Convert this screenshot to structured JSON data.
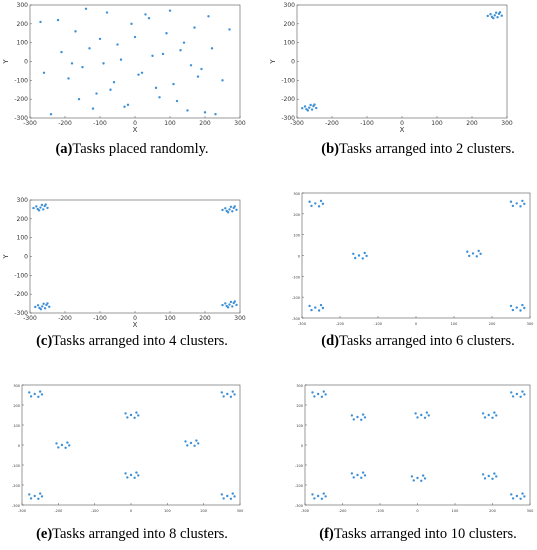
{
  "chart_data": [
    {
      "type": "scatter",
      "caption_label": "(a)",
      "caption": "Tasks placed randomly.",
      "xlabel": "X",
      "ylabel": "Y",
      "color": "#3d8fd6",
      "xlim": [
        -300,
        300
      ],
      "ylim": [
        -300,
        300
      ],
      "xticks": [
        -300,
        -200,
        -100,
        0,
        100,
        200,
        300
      ],
      "yticks": [
        -300,
        -200,
        -100,
        0,
        100,
        200,
        300
      ],
      "x": [
        -270,
        -240,
        -210,
        -190,
        -170,
        -150,
        -140,
        -120,
        -100,
        -90,
        -70,
        -50,
        -30,
        -10,
        10,
        30,
        50,
        70,
        90,
        110,
        130,
        150,
        170,
        190,
        210,
        230,
        250,
        270,
        -260,
        -220,
        -180,
        -160,
        -130,
        -110,
        -80,
        -60,
        -40,
        -20,
        0,
        20,
        40,
        60,
        80,
        100,
        120,
        140,
        160,
        180,
        200,
        220
      ],
      "values": [
        210,
        -280,
        50,
        -90,
        160,
        -30,
        280,
        -250,
        120,
        -10,
        -150,
        90,
        -240,
        200,
        -70,
        250,
        30,
        -190,
        150,
        -120,
        60,
        -260,
        180,
        -40,
        240,
        -280,
        -100,
        170,
        -60,
        220,
        -10,
        -200,
        70,
        -170,
        260,
        -110,
        10,
        -230,
        130,
        -60,
        230,
        -140,
        40,
        270,
        -210,
        100,
        -20,
        -80,
        -270,
        70
      ]
    },
    {
      "type": "scatter",
      "caption_label": "(b)",
      "caption": "Tasks arranged into 2 clusters.",
      "xlabel": "X",
      "ylabel": "Y",
      "color": "#3d8fd6",
      "xlim": [
        -300,
        300
      ],
      "ylim": [
        -300,
        300
      ],
      "xticks": [
        -300,
        -200,
        -100,
        0,
        100,
        200,
        300
      ],
      "yticks": [
        -300,
        -200,
        -100,
        0,
        100,
        200,
        300
      ],
      "x": [
        -265,
        -253,
        -277,
        -257,
        -273,
        -245,
        -285,
        -261,
        -269,
        -250,
        265,
        277,
        253,
        273,
        257,
        285,
        245,
        269,
        261,
        280
      ],
      "values": [
        -245,
        -237,
        -239,
        -255,
        -253,
        -247,
        -248,
        -231,
        -260,
        -229,
        245,
        253,
        251,
        235,
        237,
        243,
        242,
        259,
        230,
        261
      ]
    },
    {
      "type": "scatter",
      "caption_label": "(c)",
      "caption": "Tasks arranged into 4 clusters.",
      "xlabel": "X",
      "ylabel": "Y",
      "color": "#3d8fd6",
      "xlim": [
        -300,
        300
      ],
      "ylim": [
        -300,
        300
      ],
      "xticks": [
        -300,
        -200,
        -100,
        0,
        100,
        200,
        300
      ],
      "yticks": [
        -300,
        -200,
        -100,
        0,
        100,
        200,
        300
      ],
      "x": [
        -270,
        -258,
        -282,
        -262,
        -278,
        -250,
        -290,
        -266,
        -274,
        -255,
        270,
        282,
        258,
        278,
        262,
        290,
        250,
        274,
        266,
        285,
        -265,
        -253,
        -277,
        -257,
        -273,
        -245,
        -285,
        -261,
        -269,
        -250,
        270,
        282,
        258,
        278,
        262,
        290,
        250,
        274,
        266,
        285
      ],
      "values": [
        260,
        268,
        266,
        250,
        252,
        258,
        257,
        274,
        245,
        276,
        250,
        258,
        256,
        240,
        242,
        248,
        247,
        264,
        235,
        266,
        -265,
        -257,
        -259,
        -275,
        -273,
        -267,
        -268,
        -251,
        -280,
        -249,
        -255,
        -247,
        -249,
        -265,
        -263,
        -257,
        -258,
        -241,
        -270,
        -239
      ]
    },
    {
      "type": "scatter",
      "caption_label": "(d)",
      "caption": "Tasks arranged into 6 clusters.",
      "color": "#3d8fd6",
      "xlim": [
        -300,
        300
      ],
      "ylim": [
        -300,
        300
      ],
      "xticks": [
        -300,
        -200,
        -100,
        0,
        100,
        200,
        300
      ],
      "yticks": [
        -300,
        -200,
        -100,
        0,
        100,
        200,
        300
      ],
      "x": [
        -265,
        -250,
        -280,
        -255,
        -275,
        -245,
        265,
        280,
        250,
        275,
        255,
        285,
        -150,
        -135,
        -165,
        -140,
        -160,
        -130,
        150,
        165,
        135,
        160,
        140,
        170,
        -265,
        -250,
        -280,
        -255,
        -275,
        -245,
        265,
        280,
        250,
        275,
        255,
        285
      ],
      "values": [
        250,
        262,
        258,
        236,
        238,
        248,
        250,
        262,
        258,
        236,
        238,
        248,
        0,
        12,
        8,
        -14,
        -12,
        -2,
        10,
        22,
        18,
        -4,
        -2,
        8,
        -250,
        -238,
        -242,
        -264,
        -262,
        -252,
        -250,
        -238,
        -242,
        -264,
        -262,
        -252
      ]
    },
    {
      "type": "scatter",
      "caption_label": "(e)",
      "caption": "Tasks arranged into 8 clusters.",
      "color": "#3d8fd6",
      "xlim": [
        -300,
        300
      ],
      "ylim": [
        -300,
        300
      ],
      "xticks": [
        -300,
        -200,
        -100,
        0,
        100,
        200,
        300
      ],
      "yticks": [
        -300,
        -200,
        -100,
        0,
        100,
        200,
        300
      ],
      "x": [
        -265,
        -250,
        -280,
        -255,
        -275,
        -245,
        265,
        280,
        250,
        275,
        255,
        285,
        0,
        15,
        -15,
        10,
        -10,
        20,
        -190,
        -175,
        -205,
        -180,
        -200,
        -170,
        165,
        180,
        150,
        175,
        155,
        185,
        0,
        15,
        -15,
        10,
        -10,
        20,
        -265,
        -250,
        -280,
        -255,
        -275,
        -245,
        265,
        280,
        250,
        275,
        255,
        285
      ],
      "values": [
        255,
        267,
        263,
        241,
        243,
        253,
        255,
        267,
        263,
        241,
        243,
        253,
        150,
        162,
        158,
        136,
        138,
        148,
        0,
        12,
        8,
        -14,
        -12,
        -2,
        10,
        22,
        18,
        -4,
        -2,
        8,
        -150,
        -138,
        -142,
        -164,
        -162,
        -152,
        -255,
        -243,
        -247,
        -269,
        -267,
        -257,
        -255,
        -243,
        -247,
        -269,
        -267,
        -257
      ]
    },
    {
      "type": "scatter",
      "caption_label": "(f)",
      "caption": "Tasks arranged into 10 clusters.",
      "color": "#3d8fd6",
      "xlim": [
        -300,
        300
      ],
      "ylim": [
        -300,
        300
      ],
      "xticks": [
        -300,
        -200,
        -100,
        0,
        100,
        200,
        300
      ],
      "yticks": [
        -300,
        -200,
        -100,
        0,
        100,
        200,
        300
      ],
      "x": [
        -265,
        -250,
        -280,
        -255,
        -275,
        -245,
        265,
        280,
        250,
        275,
        255,
        285,
        -160,
        -145,
        -175,
        -150,
        -170,
        -140,
        10,
        25,
        -5,
        20,
        0,
        30,
        190,
        205,
        175,
        200,
        180,
        210,
        -160,
        -145,
        -175,
        -150,
        -170,
        -140,
        0,
        15,
        -15,
        10,
        -10,
        20,
        190,
        205,
        175,
        200,
        180,
        210,
        -265,
        -250,
        -280,
        -255,
        -275,
        -245,
        265,
        280,
        250,
        275,
        255,
        285
      ],
      "values": [
        255,
        267,
        263,
        241,
        243,
        253,
        255,
        267,
        263,
        241,
        243,
        253,
        140,
        152,
        148,
        126,
        128,
        138,
        150,
        162,
        158,
        136,
        138,
        148,
        150,
        162,
        158,
        136,
        138,
        148,
        -150,
        -138,
        -142,
        -164,
        -162,
        -152,
        -165,
        -153,
        -157,
        -179,
        -177,
        -167,
        -155,
        -143,
        -147,
        -169,
        -167,
        -157,
        -255,
        -243,
        -247,
        -269,
        -267,
        -257,
        -255,
        -243,
        -247,
        -269,
        -267,
        -257
      ]
    }
  ]
}
